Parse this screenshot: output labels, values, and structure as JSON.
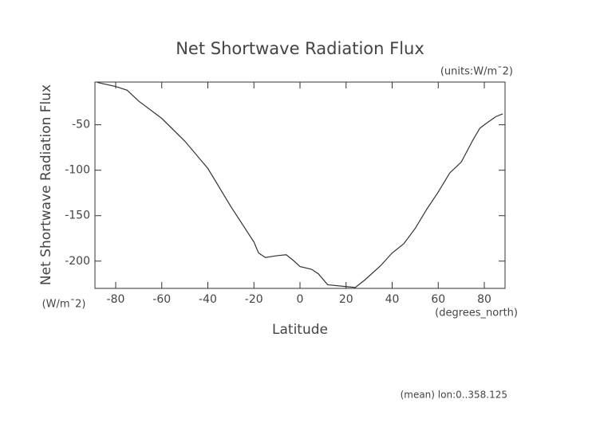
{
  "chart_data": {
    "type": "line",
    "title": "Net Shortwave Radiation Flux",
    "units_label": "(units:W/m¯2)",
    "y_label": "Net Shortwave Radiation Flux",
    "y_units": "(W/m¯2)",
    "x_label": "Latitude",
    "x_units": "(degrees_north)",
    "footnote": "(mean) lon:0..358.125",
    "x": [
      -88,
      -80,
      -75,
      -70,
      -60,
      -50,
      -40,
      -30,
      -20,
      -18,
      -15,
      -10,
      -6,
      -3,
      0,
      5,
      8,
      12,
      20,
      24,
      28,
      35,
      40,
      45,
      50,
      55,
      60,
      65,
      70,
      75,
      78,
      80,
      85,
      88
    ],
    "series": [
      {
        "name": "Net Shortwave Radiation Flux",
        "color": "#333333",
        "values": [
          -3.4,
          -7.9,
          -12,
          -24,
          -43,
          -68,
          -98,
          -140,
          -179,
          -191,
          -196,
          -194,
          -193,
          -199,
          -206,
          -209,
          -214,
          -226,
          -228,
          -229,
          -221,
          -205,
          -191,
          -181,
          -164,
          -143,
          -124,
          -103,
          -91,
          -67,
          -54,
          -50,
          -41,
          -38
        ]
      }
    ],
    "xlim": [
      -89,
      89
    ],
    "ylim": [
      -230,
      -3
    ],
    "xticks": [
      -80,
      -60,
      -40,
      -20,
      0,
      20,
      40,
      60,
      80
    ],
    "yticks": [
      -200,
      -150,
      -100,
      -50
    ],
    "grid": false
  }
}
